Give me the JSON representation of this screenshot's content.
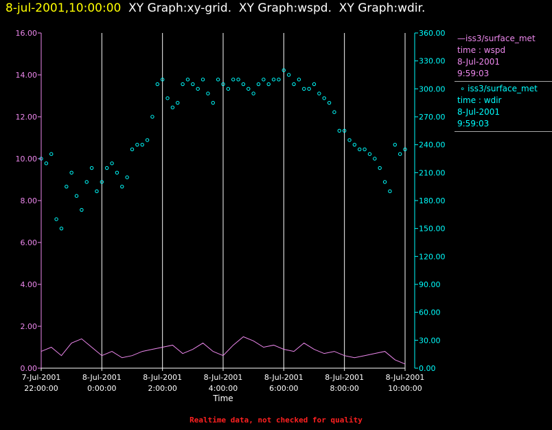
{
  "header": {
    "time": "8-jul-2001,10:00:00",
    "titles": [
      "XY Graph:xy-grid.",
      "XY Graph:wspd.",
      "XY Graph:wdir."
    ]
  },
  "legend": {
    "wspd": {
      "name": "iss3/surface_met",
      "var": "time : wspd",
      "date": "8-Jul-2001",
      "time": "9:59:03"
    },
    "wdir": {
      "name": "iss3/surface_met",
      "var": "time : wdir",
      "date": "8-Jul-2001",
      "time": "9:59:03"
    }
  },
  "footer": "Realtime data, not checked for quality",
  "colors": {
    "wspd": "#ee88ee",
    "wdir": "#00ffff",
    "grid": "#ffffff",
    "title_time": "#ffff00",
    "footer": "#ff2020"
  },
  "chart_data": {
    "type": "line+scatter",
    "xlabel": "Time",
    "x_ticks": [
      {
        "t": 0,
        "l1": "7-Jul-2001",
        "l2": "22:00:00"
      },
      {
        "t": 60,
        "l1": "8-Jul-2001",
        "l2": "0:00:00"
      },
      {
        "t": 120,
        "l1": "8-Jul-2001",
        "l2": "2:00:00"
      },
      {
        "t": 180,
        "l1": "8-Jul-2001",
        "l2": "4:00:00"
      },
      {
        "t": 240,
        "l1": "8-Jul-2001",
        "l2": "6:00:00"
      },
      {
        "t": 300,
        "l1": "8-Jul-2001",
        "l2": "8:00:00"
      },
      {
        "t": 360,
        "l1": "8-Jul-2001",
        "l2": "10:00:00"
      }
    ],
    "ylim_left": [
      0,
      16
    ],
    "yticks_left": [
      "0.00",
      "2.00",
      "4.00",
      "6.00",
      "8.00",
      "10.00",
      "12.00",
      "14.00",
      "16.00"
    ],
    "ylim_right": [
      0,
      360
    ],
    "yticks_right": [
      "0.00",
      "30.00",
      "60.00",
      "90.00",
      "120.00",
      "150.00",
      "180.00",
      "210.00",
      "240.00",
      "270.00",
      "300.00",
      "330.00",
      "360.00"
    ],
    "series": [
      {
        "name": "iss3/surface_met time : wspd",
        "axis": "left",
        "style": "line",
        "times": [
          0,
          10,
          20,
          30,
          40,
          50,
          60,
          70,
          80,
          90,
          100,
          110,
          120,
          130,
          140,
          150,
          160,
          170,
          180,
          190,
          200,
          210,
          220,
          230,
          240,
          250,
          260,
          270,
          280,
          290,
          300,
          310,
          320,
          330,
          340,
          350,
          360
        ],
        "values": [
          0.8,
          1.0,
          0.6,
          1.2,
          1.4,
          1.0,
          0.6,
          0.8,
          0.5,
          0.6,
          0.8,
          0.9,
          1.0,
          1.1,
          0.7,
          0.9,
          1.2,
          0.8,
          0.6,
          1.1,
          1.5,
          1.3,
          1.0,
          1.1,
          0.9,
          0.8,
          1.2,
          0.9,
          0.7,
          0.8,
          0.6,
          0.5,
          0.6,
          0.7,
          0.8,
          0.4,
          0.2
        ]
      },
      {
        "name": "iss3/surface_met time : wdir",
        "axis": "right",
        "style": "markers",
        "times": [
          0,
          5,
          10,
          15,
          20,
          25,
          30,
          35,
          40,
          45,
          50,
          55,
          60,
          65,
          70,
          75,
          80,
          85,
          90,
          95,
          100,
          105,
          110,
          115,
          120,
          125,
          130,
          135,
          140,
          145,
          150,
          155,
          160,
          165,
          170,
          175,
          180,
          185,
          190,
          195,
          200,
          205,
          210,
          215,
          220,
          225,
          230,
          235,
          240,
          245,
          250,
          255,
          260,
          265,
          270,
          275,
          280,
          285,
          290,
          295,
          300,
          305,
          310,
          315,
          320,
          325,
          330,
          335,
          340,
          345,
          350,
          355,
          360
        ],
        "values": [
          225,
          220,
          230,
          160,
          150,
          195,
          210,
          185,
          170,
          200,
          215,
          190,
          200,
          215,
          220,
          210,
          195,
          205,
          235,
          240,
          240,
          245,
          270,
          305,
          310,
          290,
          280,
          285,
          305,
          310,
          305,
          300,
          310,
          295,
          285,
          310,
          305,
          300,
          310,
          310,
          305,
          300,
          295,
          305,
          310,
          305,
          310,
          310,
          320,
          315,
          305,
          310,
          300,
          300,
          305,
          295,
          290,
          285,
          275,
          255,
          255,
          245,
          240,
          235,
          235,
          230,
          225,
          215,
          200,
          190,
          240,
          230,
          235
        ]
      }
    ]
  }
}
